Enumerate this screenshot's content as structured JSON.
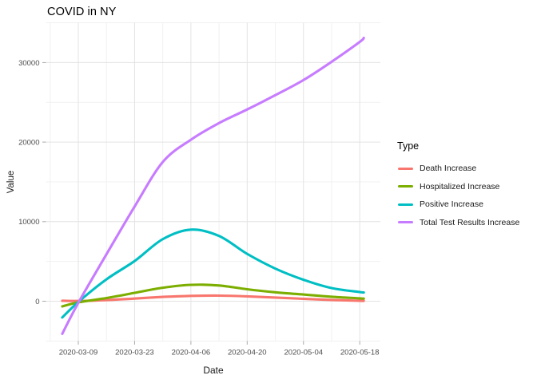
{
  "figure": {
    "background": "#ffffff",
    "grid_major_color": "#e3e3e3",
    "grid_minor_color": "#f1f1f1",
    "tick_mark_color": "#a9a9a9",
    "tick_label_color": "#4d4d4d"
  },
  "chart_data": {
    "type": "line",
    "title": "COVID in NY",
    "xlabel": "Date",
    "ylabel": "Value",
    "legend_title": "Type",
    "legend_position": "right",
    "grid": true,
    "x_ticks": [
      "2020-03-09",
      "2020-03-23",
      "2020-04-06",
      "2020-04-20",
      "2020-05-04",
      "2020-05-18"
    ],
    "x_minor_ticks": [
      "2020-03-02",
      "2020-03-16",
      "2020-03-30",
      "2020-04-13",
      "2020-04-27",
      "2020-05-11"
    ],
    "y_ticks": [
      0,
      10000,
      20000,
      30000
    ],
    "y_minor_ticks": [
      -5000,
      5000,
      15000,
      25000,
      35000
    ],
    "ylim": [
      -5000,
      35000
    ],
    "xlim": [
      "2020-02-29",
      "2020-05-23"
    ],
    "dates": [
      "2020-03-05",
      "2020-03-09",
      "2020-03-16",
      "2020-03-23",
      "2020-03-30",
      "2020-04-06",
      "2020-04-13",
      "2020-04-20",
      "2020-04-27",
      "2020-05-04",
      "2020-05-11",
      "2020-05-18",
      "2020-05-19"
    ],
    "series": [
      {
        "name": "Death Increase",
        "color": "#F8766D",
        "values": [
          60,
          30,
          140,
          330,
          540,
          670,
          700,
          610,
          460,
          300,
          160,
          60,
          50
        ]
      },
      {
        "name": "Hospitalized Increase",
        "color": "#7CAE00",
        "values": [
          -650,
          -150,
          400,
          1050,
          1700,
          2060,
          1980,
          1500,
          1120,
          840,
          560,
          360,
          330
        ]
      },
      {
        "name": "Positive Increase",
        "color": "#00BFC4",
        "values": [
          -2050,
          -100,
          2750,
          5050,
          7800,
          9000,
          8200,
          5950,
          4100,
          2700,
          1650,
          1150,
          1100
        ]
      },
      {
        "name": "Total Test Results Increase",
        "color": "#C77CFF",
        "values": [
          -4100,
          -200,
          5900,
          11900,
          17500,
          20300,
          22400,
          24100,
          25900,
          27800,
          30100,
          32600,
          33100
        ]
      }
    ]
  }
}
